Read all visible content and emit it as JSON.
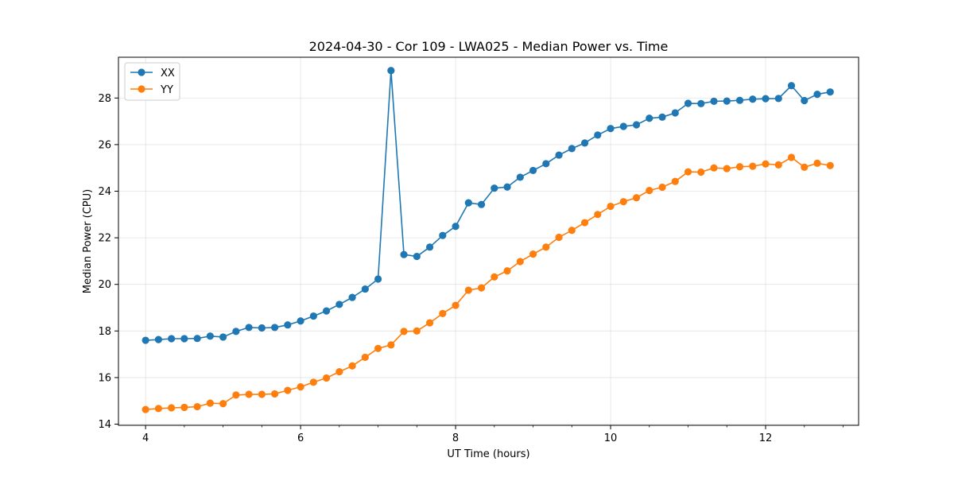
{
  "chart_data": {
    "type": "line",
    "title": "2024-04-30 - Cor 109 - LWA025 - Median Power vs. Time",
    "xlabel": "UT Time (hours)",
    "ylabel": "Median Power (CPU)",
    "xlim": [
      3.65,
      13.2
    ],
    "ylim": [
      13.95,
      29.75
    ],
    "xticks": [
      4,
      6,
      8,
      10,
      12
    ],
    "yticks": [
      14,
      16,
      18,
      20,
      22,
      24,
      26,
      28
    ],
    "grid": true,
    "legend_position": "top-left",
    "x": [
      4.0,
      4.1667,
      4.3333,
      4.5,
      4.6667,
      4.8333,
      5.0,
      5.1667,
      5.3333,
      5.5,
      5.6667,
      5.8333,
      6.0,
      6.1667,
      6.3333,
      6.5,
      6.6667,
      6.8333,
      7.0,
      7.1667,
      7.3333,
      7.5,
      7.6667,
      7.8333,
      8.0,
      8.1667,
      8.3333,
      8.5,
      8.6667,
      8.8333,
      9.0,
      9.1667,
      9.3333,
      9.5,
      9.6667,
      9.8333,
      10.0,
      10.1667,
      10.3333,
      10.5,
      10.6667,
      10.8333,
      11.0,
      11.1667,
      11.3333,
      11.5,
      11.6667,
      11.8333,
      12.0,
      12.1667,
      12.3333,
      12.5,
      12.6667,
      12.8333
    ],
    "series": [
      {
        "name": "XX",
        "color": "#1f77b4",
        "values": [
          17.6,
          17.63,
          17.67,
          17.67,
          17.68,
          17.78,
          17.74,
          17.98,
          18.15,
          18.13,
          18.15,
          18.26,
          18.43,
          18.64,
          18.86,
          19.14,
          19.44,
          19.8,
          20.23,
          29.18,
          21.28,
          21.2,
          21.6,
          22.1,
          22.49,
          23.5,
          23.43,
          24.13,
          24.18,
          24.6,
          24.89,
          25.18,
          25.55,
          25.83,
          26.07,
          26.41,
          26.69,
          26.78,
          26.85,
          27.13,
          27.18,
          27.36,
          27.77,
          27.76,
          27.86,
          27.87,
          27.9,
          27.95,
          27.97,
          27.98,
          28.53,
          27.89,
          28.16,
          28.26
        ]
      },
      {
        "name": "YY",
        "color": "#ff7f0e",
        "values": [
          14.63,
          14.67,
          14.7,
          14.72,
          14.75,
          14.9,
          14.88,
          15.25,
          15.28,
          15.28,
          15.3,
          15.45,
          15.6,
          15.8,
          15.98,
          16.25,
          16.5,
          16.87,
          17.25,
          17.4,
          17.98,
          18.0,
          18.35,
          18.75,
          19.1,
          19.75,
          19.85,
          20.32,
          20.58,
          20.98,
          21.3,
          21.6,
          22.02,
          22.32,
          22.65,
          23.0,
          23.35,
          23.55,
          23.72,
          24.03,
          24.17,
          24.42,
          24.83,
          24.82,
          25.0,
          24.97,
          25.05,
          25.07,
          25.17,
          25.13,
          25.45,
          25.03,
          25.2,
          25.1
        ]
      }
    ]
  }
}
